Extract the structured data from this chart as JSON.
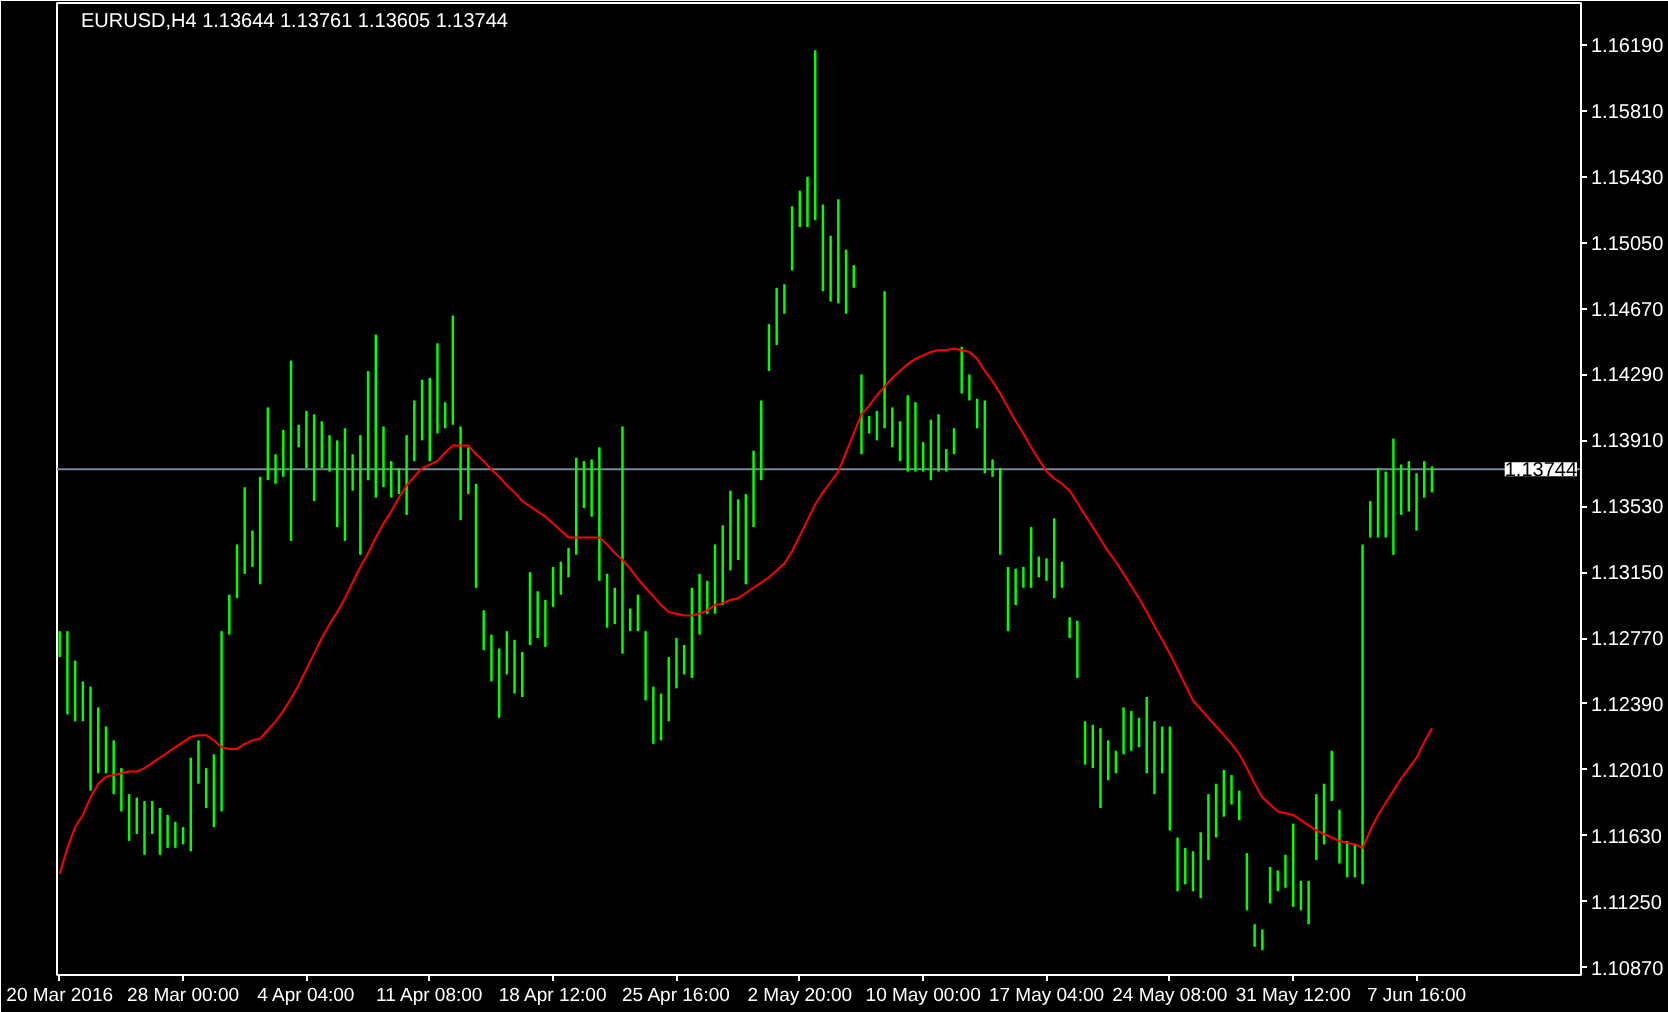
{
  "chart_data": {
    "type": "bar",
    "title": "EURUSD,H4  1.13644 1.13761 1.13605 1.13744",
    "categories": [
      "20 Mar 2016",
      null,
      null,
      null,
      null,
      null,
      null,
      null,
      null,
      null,
      null,
      null,
      null,
      null,
      null,
      null,
      "28 Mar 00:00",
      null,
      null,
      null,
      null,
      null,
      null,
      null,
      null,
      null,
      null,
      null,
      null,
      null,
      null,
      null,
      "4 Apr 04:00",
      null,
      null,
      null,
      null,
      null,
      null,
      null,
      null,
      null,
      null,
      null,
      null,
      null,
      null,
      null,
      "11 Apr 08:00",
      null,
      null,
      null,
      null,
      null,
      null,
      null,
      null,
      null,
      null,
      null,
      null,
      null,
      null,
      null,
      "18 Apr 12:00",
      null,
      null,
      null,
      null,
      null,
      null,
      null,
      null,
      null,
      null,
      null,
      null,
      null,
      null,
      null,
      "25 Apr 16:00",
      null,
      null,
      null,
      null,
      null,
      null,
      null,
      null,
      null,
      null,
      null,
      null,
      null,
      null,
      null,
      "2 May 20:00",
      null,
      null,
      null,
      null,
      null,
      null,
      null,
      null,
      null,
      null,
      null,
      null,
      null,
      null,
      null,
      "10 May 00:00",
      null,
      null,
      null,
      null,
      null,
      null,
      null,
      null,
      null,
      null,
      null,
      null,
      null,
      null,
      null,
      "17 May 04:00",
      null,
      null,
      null,
      null,
      null,
      null,
      null,
      null,
      null,
      null,
      null,
      null,
      null,
      null,
      null,
      "24 May 08:00",
      null,
      null,
      null,
      null,
      null,
      null,
      null,
      null,
      null,
      null,
      null,
      null,
      null,
      null,
      null,
      "31 May 12:00",
      null,
      null,
      null,
      null,
      null,
      null,
      null,
      null,
      null,
      null,
      null,
      null,
      null,
      null,
      null,
      "7 Jun 16:00",
      null,
      null
    ],
    "ylim": [
      1.10827,
      1.16432
    ],
    "yticks": [
      {
        "value": 1.1087,
        "label": "1.10870"
      },
      {
        "value": 1.1125,
        "label": "1.11250"
      },
      {
        "value": 1.1163,
        "label": "1.11630"
      },
      {
        "value": 1.1201,
        "label": "1.12010"
      },
      {
        "value": 1.1239,
        "label": "1.12390"
      },
      {
        "value": 1.1277,
        "label": "1.12770"
      },
      {
        "value": 1.1315,
        "label": "1.13150"
      },
      {
        "value": 1.1353,
        "label": "1.13530"
      },
      {
        "value": 1.1391,
        "label": "1.13910"
      },
      {
        "value": 1.1429,
        "label": "1.14290"
      },
      {
        "value": 1.1467,
        "label": "1.14670"
      },
      {
        "value": 1.1505,
        "label": "1.15050"
      },
      {
        "value": 1.1543,
        "label": "1.15430"
      },
      {
        "value": 1.1581,
        "label": "1.15810"
      },
      {
        "value": 1.1619,
        "label": "1.16190"
      }
    ],
    "ref_lines": [
      {
        "axis": "y",
        "value": 1.13744,
        "label": "1.13744",
        "color": "#778899"
      }
    ],
    "series": [
      {
        "color": "#00ff00",
        "base": [
          1.1266,
          1.1233,
          1.1229,
          1.1229,
          1.1189,
          1.1199,
          1.1199,
          1.1187,
          1.1177,
          1.116,
          1.1164,
          1.1152,
          1.1164,
          1.1152,
          1.1156,
          1.1156,
          1.1158,
          1.1154,
          1.1193,
          1.1179,
          1.1168,
          1.1177,
          1.1279,
          1.13,
          1.1314,
          1.1318,
          1.1308,
          1.1368,
          1.1366,
          1.137,
          1.1333,
          1.1387,
          1.1375,
          1.1356,
          1.1375,
          1.1373,
          1.1341,
          1.1333,
          1.1362,
          1.1325,
          1.1368,
          1.1358,
          1.1364,
          1.1358,
          1.136,
          1.1348,
          1.1379,
          1.1391,
          1.1379,
          1.1395,
          1.1398,
          1.14,
          1.1345,
          1.136,
          1.1306,
          1.127,
          1.1252,
          1.1231,
          1.1256,
          1.1245,
          1.1243,
          1.1273,
          1.1277,
          1.1272,
          1.1295,
          1.1302,
          1.1312,
          1.1325,
          1.1352,
          1.1347,
          1.131,
          1.1283,
          1.1285,
          1.1268,
          1.1281,
          1.1281,
          1.1241,
          1.1216,
          1.1218,
          1.1229,
          1.1248,
          1.1256,
          1.1254,
          1.1279,
          1.1291,
          1.1291,
          1.1296,
          1.1316,
          1.1322,
          1.1308,
          1.1341,
          1.1368,
          1.1431,
          1.1446,
          1.1464,
          1.1489,
          1.1514,
          1.1514,
          1.1518,
          1.1477,
          1.1471,
          1.147,
          1.1464,
          1.1479,
          1.1383,
          1.1395,
          1.1391,
          1.1398,
          1.1387,
          1.1379,
          1.1373,
          1.1373,
          1.1373,
          1.1368,
          1.1373,
          1.1373,
          1.1383,
          1.1418,
          1.1414,
          1.1398,
          1.1372,
          1.137,
          1.1325,
          1.1281,
          1.1296,
          1.1306,
          1.1306,
          1.1312,
          1.131,
          1.13,
          1.1306,
          1.1277,
          1.1254,
          1.1204,
          1.1202,
          1.1179,
          1.1195,
          1.1199,
          1.121,
          1.1212,
          1.1214,
          1.1199,
          1.1187,
          1.1199,
          1.1166,
          1.1131,
          1.1135,
          1.1131,
          1.1127,
          1.1149,
          1.1162,
          1.1174,
          1.1181,
          1.1172,
          1.112,
          1.1099,
          1.1097,
          1.1124,
          1.1131,
          1.1133,
          1.1122,
          1.112,
          1.1112,
          1.1149,
          1.1158,
          1.1183,
          1.1147,
          1.1139,
          1.1139,
          1.1135,
          1.1335,
          1.1335,
          1.1335,
          1.1325,
          1.1348,
          1.135,
          1.1339,
          1.1358,
          1.1361
        ],
        "values": [
          0.0015,
          0.0048,
          0.0035,
          0.0023,
          0.006,
          0.0038,
          0.0027,
          0.0031,
          0.0025,
          0.0027,
          0.0021,
          0.0031,
          0.0019,
          0.0027,
          0.0019,
          0.0015,
          0.001,
          0.0054,
          0.0025,
          0.0023,
          0.0042,
          0.0104,
          0.0023,
          0.0031,
          0.005,
          0.0021,
          0.0062,
          0.0042,
          0.0017,
          0.0027,
          0.0104,
          0.0013,
          0.0033,
          0.005,
          0.0027,
          0.0021,
          0.005,
          0.0065,
          0.0021,
          0.0069,
          0.0063,
          0.0094,
          0.0035,
          0.0021,
          0.0015,
          0.0046,
          0.0035,
          0.0035,
          0.0048,
          0.0052,
          0.0015,
          0.0063,
          0.0054,
          0.0027,
          0.006,
          0.0023,
          0.0027,
          0.004,
          0.0025,
          0.0031,
          0.0026,
          0.0042,
          0.0027,
          0.0027,
          0.0023,
          0.0019,
          0.0017,
          0.0056,
          0.0027,
          0.0033,
          0.0077,
          0.0031,
          0.0021,
          0.0131,
          0.0013,
          0.0021,
          0.004,
          0.0033,
          0.0027,
          0.0037,
          0.0029,
          0.0017,
          0.0052,
          0.0035,
          0.0019,
          0.004,
          0.0046,
          0.0046,
          0.0035,
          0.0052,
          0.0044,
          0.0046,
          0.0027,
          0.0033,
          0.0017,
          0.0037,
          0.0021,
          0.0029,
          0.0098,
          0.005,
          0.0038,
          0.006,
          0.0037,
          0.0013,
          0.0046,
          0.001,
          0.0017,
          0.0079,
          0.0023,
          0.0023,
          0.0044,
          0.004,
          0.0017,
          0.0035,
          0.0033,
          0.0013,
          0.0015,
          0.0027,
          0.0015,
          0.0017,
          0.0042,
          0.001,
          0.005,
          0.0037,
          0.0021,
          0.0012,
          0.0035,
          0.0012,
          0.0013,
          0.0046,
          0.0015,
          0.0012,
          0.0033,
          0.0025,
          0.0025,
          0.0046,
          0.0023,
          0.0013,
          0.0027,
          0.0023,
          0.0017,
          0.0044,
          0.0042,
          0.0027,
          0.006,
          0.0031,
          0.0021,
          0.0023,
          0.0038,
          0.0038,
          0.0031,
          0.0027,
          0.0017,
          0.0017,
          0.0033,
          0.0013,
          0.0012,
          0.0021,
          0.0012,
          0.0019,
          0.0048,
          0.0017,
          0.0025,
          0.0038,
          0.0035,
          0.0029,
          0.0031,
          0.0021,
          0.0019,
          0.0196,
          0.0021,
          0.004,
          0.0038,
          0.0067,
          0.0029,
          0.0029,
          0.0033,
          0.0021,
          0.0015
        ]
      },
      {
        "type": "line",
        "color": "#ff0000",
        "values": [
          1.1141,
          1.1156,
          1.1168,
          1.1175,
          1.1185,
          1.1193,
          1.1197,
          1.1198,
          1.1199,
          1.12,
          1.12,
          1.1202,
          1.1205,
          1.1208,
          1.1211,
          1.1214,
          1.1217,
          1.122,
          1.1221,
          1.1221,
          1.1218,
          1.1214,
          1.1213,
          1.1213,
          1.1216,
          1.1218,
          1.1219,
          1.1224,
          1.1229,
          1.1235,
          1.1242,
          1.125,
          1.1259,
          1.1268,
          1.1277,
          1.1285,
          1.1292,
          1.13,
          1.1309,
          1.1318,
          1.1326,
          1.1335,
          1.1343,
          1.135,
          1.1358,
          1.1365,
          1.137,
          1.1375,
          1.1377,
          1.1379,
          1.1384,
          1.1388,
          1.1388,
          1.1388,
          1.1383,
          1.1379,
          1.1374,
          1.137,
          1.1365,
          1.1361,
          1.1356,
          1.1353,
          1.135,
          1.1347,
          1.1343,
          1.1339,
          1.1335,
          1.1335,
          1.1335,
          1.1335,
          1.1335,
          1.1331,
          1.1326,
          1.1322,
          1.1317,
          1.1311,
          1.1306,
          1.1301,
          1.1296,
          1.1292,
          1.1291,
          1.129,
          1.129,
          1.1291,
          1.1293,
          1.1296,
          1.1297,
          1.1299,
          1.13,
          1.1303,
          1.1306,
          1.1309,
          1.1312,
          1.1316,
          1.132,
          1.1327,
          1.1336,
          1.1345,
          1.1354,
          1.1361,
          1.1367,
          1.1373,
          1.1384,
          1.1395,
          1.1406,
          1.1411,
          1.1417,
          1.1422,
          1.1427,
          1.1431,
          1.1435,
          1.1438,
          1.144,
          1.1442,
          1.1443,
          1.1443,
          1.1444,
          1.1443,
          1.1442,
          1.1438,
          1.1431,
          1.1425,
          1.1418,
          1.141,
          1.1402,
          1.1395,
          1.1387,
          1.138,
          1.1373,
          1.1369,
          1.1366,
          1.1362,
          1.1355,
          1.1348,
          1.1341,
          1.1334,
          1.1327,
          1.1321,
          1.1314,
          1.1307,
          1.13,
          1.1292,
          1.1284,
          1.1276,
          1.1268,
          1.1259,
          1.125,
          1.1241,
          1.1236,
          1.1231,
          1.1226,
          1.1221,
          1.1216,
          1.121,
          1.1202,
          1.1193,
          1.1185,
          1.1181,
          1.1177,
          1.1176,
          1.1175,
          1.1172,
          1.1169,
          1.1166,
          1.1164,
          1.1162,
          1.116,
          1.1159,
          1.1158,
          1.1156,
          1.1166,
          1.1175,
          1.1182,
          1.1189,
          1.1196,
          1.1202,
          1.1208,
          1.1217,
          1.1225
        ]
      }
    ]
  }
}
